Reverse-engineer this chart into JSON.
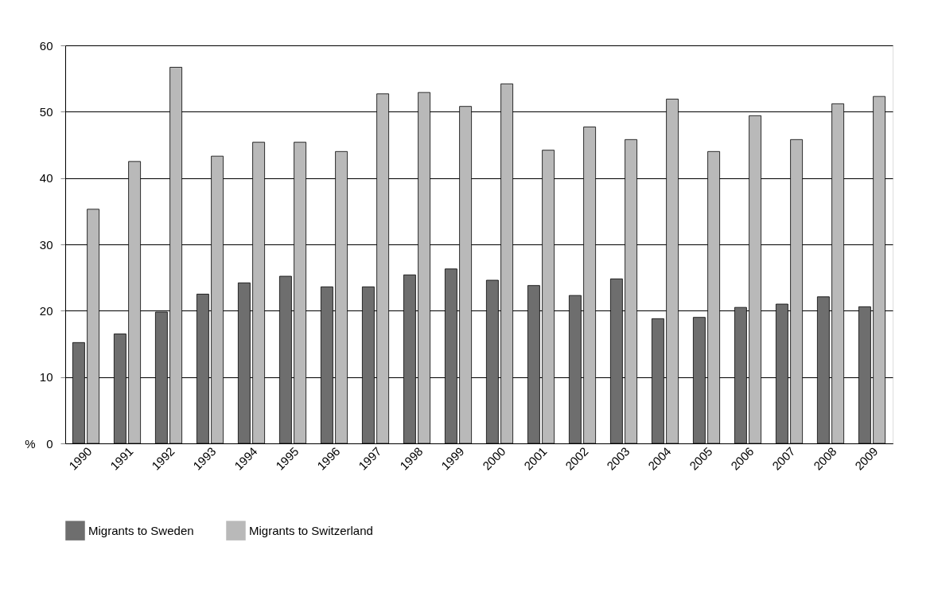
{
  "chart_data": {
    "type": "bar",
    "ylabel": "%",
    "categories": [
      "1990",
      "1991",
      "1992",
      "1993",
      "1994",
      "1995",
      "1996",
      "1997",
      "1998",
      "1999",
      "2000",
      "2001",
      "2002",
      "2003",
      "2004",
      "2005",
      "2006",
      "2007",
      "2008",
      "2009"
    ],
    "series": [
      {
        "name": "Migrants to Sweden",
        "color": "#6e6e6e",
        "values": [
          15.2,
          16.5,
          19.8,
          22.5,
          24.2,
          25.2,
          23.6,
          23.6,
          25.4,
          26.3,
          24.6,
          23.8,
          22.3,
          24.8,
          18.8,
          19.0,
          20.5,
          21.0,
          22.1,
          20.6
        ]
      },
      {
        "name": "Migrants to Switzerland",
        "color": "#b9b9b9",
        "values": [
          35.3,
          42.5,
          56.7,
          43.3,
          45.4,
          45.4,
          44.0,
          52.7,
          52.9,
          50.8,
          54.2,
          44.2,
          47.7,
          45.8,
          51.9,
          44.0,
          49.4,
          45.8,
          51.2,
          52.3
        ]
      }
    ],
    "ylim": [
      0,
      60
    ],
    "yticks": [
      0,
      10,
      20,
      30,
      40,
      50,
      60
    ],
    "grid": "y",
    "legend": "bottom"
  }
}
